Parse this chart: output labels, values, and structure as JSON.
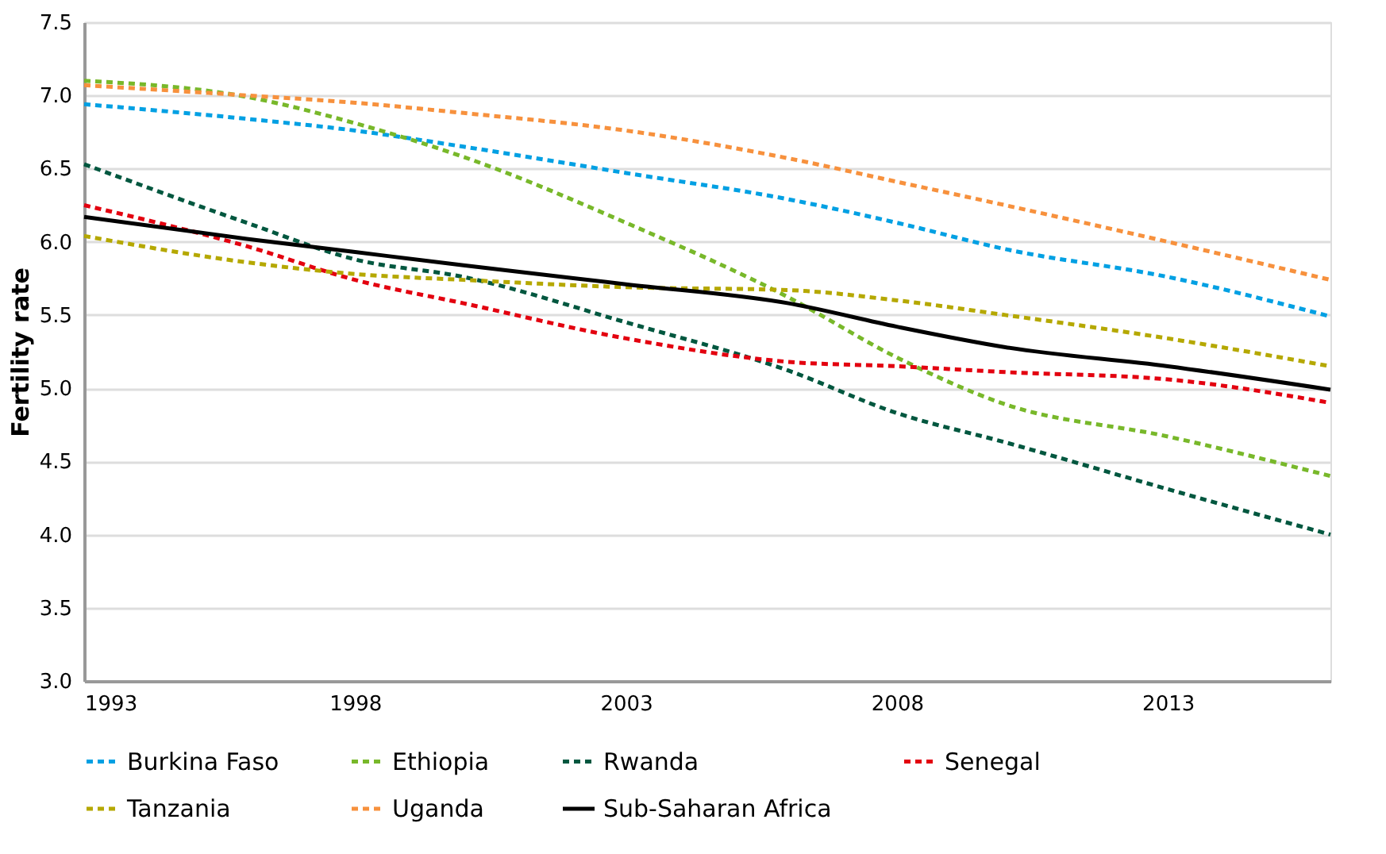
{
  "chart_data": {
    "type": "line",
    "ylabel": "Fertility rate",
    "x": [
      1993,
      1996,
      1998,
      2000,
      2003,
      2006,
      2008,
      2010,
      2013,
      2016
    ],
    "xlim": [
      1993,
      2016
    ],
    "xticks": [
      1993,
      1998,
      2003,
      2008,
      2013
    ],
    "ylim": [
      3.0,
      7.5
    ],
    "yticks": [
      {
        "value": 3.0,
        "label": "3.0"
      },
      {
        "value": 3.5,
        "label": "3.5"
      },
      {
        "value": 4.0,
        "label": "4.0"
      },
      {
        "value": 4.5,
        "label": "4.5"
      },
      {
        "value": 5.0,
        "label": "5.0"
      },
      {
        "value": 5.5,
        "label": "5.5"
      },
      {
        "value": 6.0,
        "label": "6.0"
      },
      {
        "value": 6.5,
        "label": "6.5"
      },
      {
        "value": 7.0,
        "label": "7.0"
      },
      {
        "value": 7.5,
        "label": "7.5"
      }
    ],
    "grid": "y",
    "legend": "bottom",
    "marker": "none",
    "series": [
      {
        "name": "Burkina Faso",
        "color": "#00a0e3",
        "line_style": "dashed",
        "values": [
          6.94,
          6.84,
          6.76,
          6.65,
          6.47,
          6.29,
          6.13,
          5.95,
          5.76,
          5.49
        ]
      },
      {
        "name": "Ethiopia",
        "color": "#78b82a",
        "line_style": "dashed",
        "values": [
          7.1,
          6.99,
          6.81,
          6.58,
          6.13,
          5.62,
          5.21,
          4.89,
          4.67,
          4.4
        ]
      },
      {
        "name": "Rwanda",
        "color": "#00573f",
        "line_style": "dashed",
        "values": [
          6.53,
          6.13,
          5.88,
          5.76,
          5.45,
          5.12,
          4.83,
          4.63,
          4.31,
          4.0
        ]
      },
      {
        "name": "Senegal",
        "color": "#e3000f",
        "line_style": "dashed",
        "values": [
          6.25,
          5.97,
          5.74,
          5.58,
          5.34,
          5.18,
          5.15,
          5.11,
          5.06,
          4.9
        ]
      },
      {
        "name": "Tanzania",
        "color": "#b5a800",
        "line_style": "dashed",
        "values": [
          6.04,
          5.86,
          5.78,
          5.74,
          5.69,
          5.67,
          5.6,
          5.5,
          5.34,
          5.15
        ]
      },
      {
        "name": "Uganda",
        "color": "#f7913d",
        "line_style": "dashed",
        "values": [
          7.07,
          7.0,
          6.95,
          6.88,
          6.76,
          6.57,
          6.41,
          6.25,
          6.0,
          5.74
        ]
      },
      {
        "name": "Sub-Saharan Africa",
        "color": "#000000",
        "line_style": "solid",
        "values": [
          6.17,
          6.02,
          5.93,
          5.84,
          5.71,
          5.58,
          5.42,
          5.28,
          5.15,
          4.99
        ]
      }
    ]
  }
}
